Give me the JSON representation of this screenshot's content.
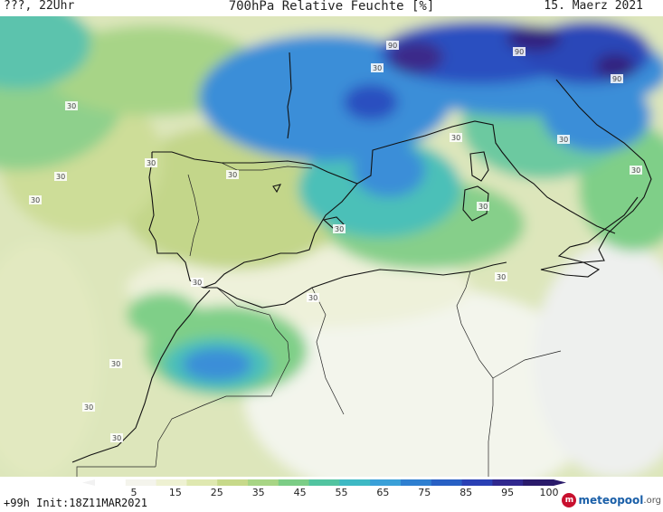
{
  "header": {
    "left": "???, 22Uhr",
    "title": "700hPa Relative Feuchte [%]",
    "date": "15. Maerz 2021"
  },
  "map": {
    "contour_labels": [
      "30",
      "90"
    ],
    "colors": {
      "low": "#f6f8f4",
      "mid_low": "#e8edc8",
      "mid": "#c6d98a",
      "green": "#7fcf88",
      "teal": "#4cc0b8",
      "blue": "#3a8ed8",
      "dark_blue": "#2a50c0",
      "purple": "#3a2a8a"
    }
  },
  "legend": {
    "ticks": [
      "5",
      "15",
      "25",
      "35",
      "45",
      "55",
      "65",
      "75",
      "85",
      "95",
      "100"
    ],
    "colors": [
      "#ffffff",
      "#f4f4ec",
      "#eef1d2",
      "#dfe8b0",
      "#c7d98a",
      "#a8d585",
      "#7ccd86",
      "#52c4a0",
      "#3eb9c4",
      "#3aa0d8",
      "#2e7fd0",
      "#2860c4",
      "#2a40b4",
      "#30288e",
      "#2a1a6a"
    ]
  },
  "footer": {
    "init": "+99h Init:18Z11MAR2021",
    "brand_name": "meteopool",
    "brand_tld": ".org"
  }
}
